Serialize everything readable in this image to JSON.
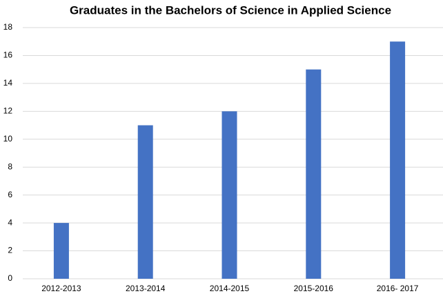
{
  "chart_data": {
    "type": "bar",
    "title": "Graduates in the Bachelors of Science in Applied Science",
    "categories": [
      "2012-2013",
      "2013-2014",
      "2014-2015",
      "2015-2016",
      "2016- 2017"
    ],
    "values": [
      4,
      11,
      12,
      15,
      17
    ],
    "color": "#4472c4",
    "ylim": [
      0,
      18
    ],
    "yticks": [
      0,
      2,
      4,
      6,
      8,
      10,
      12,
      14,
      16,
      18
    ],
    "grid": true
  }
}
